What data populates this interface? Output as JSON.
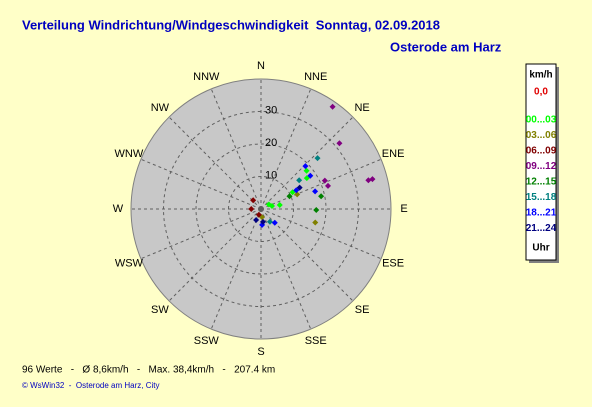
{
  "chart_data": {
    "type": "polar_scatter",
    "title": "Verteilung Windrichtung/Windgeschwindigkeit  Sonntag, 02.09.2018",
    "subtitle": "Osterode am Harz",
    "directions": [
      "N",
      "NNE",
      "NE",
      "ENE",
      "E",
      "ESE",
      "SE",
      "SSE",
      "S",
      "SSW",
      "SW",
      "WSW",
      "W",
      "WNW",
      "NW",
      "NNW"
    ],
    "rlim": [
      0,
      40
    ],
    "rticks": [
      10,
      20,
      30
    ],
    "legend_title": "km/h",
    "calm_label": "0,0",
    "calm_color": "#e00000",
    "legend_footer": "Uhr",
    "series": [
      {
        "name": "00...03",
        "color": "#00ff00",
        "direction": [
          50,
          56,
          78,
          62,
          75,
          60
        ],
        "speed": [
          18.3,
          17,
          5.9,
          11,
          3.5,
          2.8
        ]
      },
      {
        "name": "03...06",
        "color": "#808000",
        "direction": [
          104,
          68,
          173
        ],
        "speed": [
          17.2,
          12,
          2.5
        ]
      },
      {
        "name": "06...09",
        "color": "#800000",
        "direction": [
          318,
          270,
          200
        ],
        "speed": [
          3.6,
          3,
          1.9
        ]
      },
      {
        "name": "09...12",
        "color": "#800080",
        "direction": [
          35,
          50,
          75,
          75,
          71,
          66
        ],
        "speed": [
          38.4,
          31.5,
          35.5,
          34.2,
          21.8,
          21.5
        ]
      },
      {
        "name": "12...15",
        "color": "#008000",
        "direction": [
          91,
          78,
          66
        ],
        "speed": [
          17,
          18.9,
          9.6
        ]
      },
      {
        "name": "15...18",
        "color": "#008080",
        "direction": [
          48,
          53,
          145
        ],
        "speed": [
          23.4,
          14.7,
          4.8
        ]
      },
      {
        "name": "18...21",
        "color": "#0000ff",
        "direction": [
          46,
          56,
          62,
          72,
          176,
          135
        ],
        "speed": [
          19,
          18.3,
          12.3,
          17.5,
          4.9,
          6
        ]
      },
      {
        "name": "21...24",
        "color": "#000080",
        "direction": [
          171,
          204,
          61
        ],
        "speed": [
          4,
          3.7,
          13.6
        ]
      }
    ],
    "footer": "96 Werte   -   Ø 8,6km/h   -   Max. 38,4km/h   -   207.4 km",
    "copyright": "© WsWin32  -  Osterode am Harz, City"
  }
}
